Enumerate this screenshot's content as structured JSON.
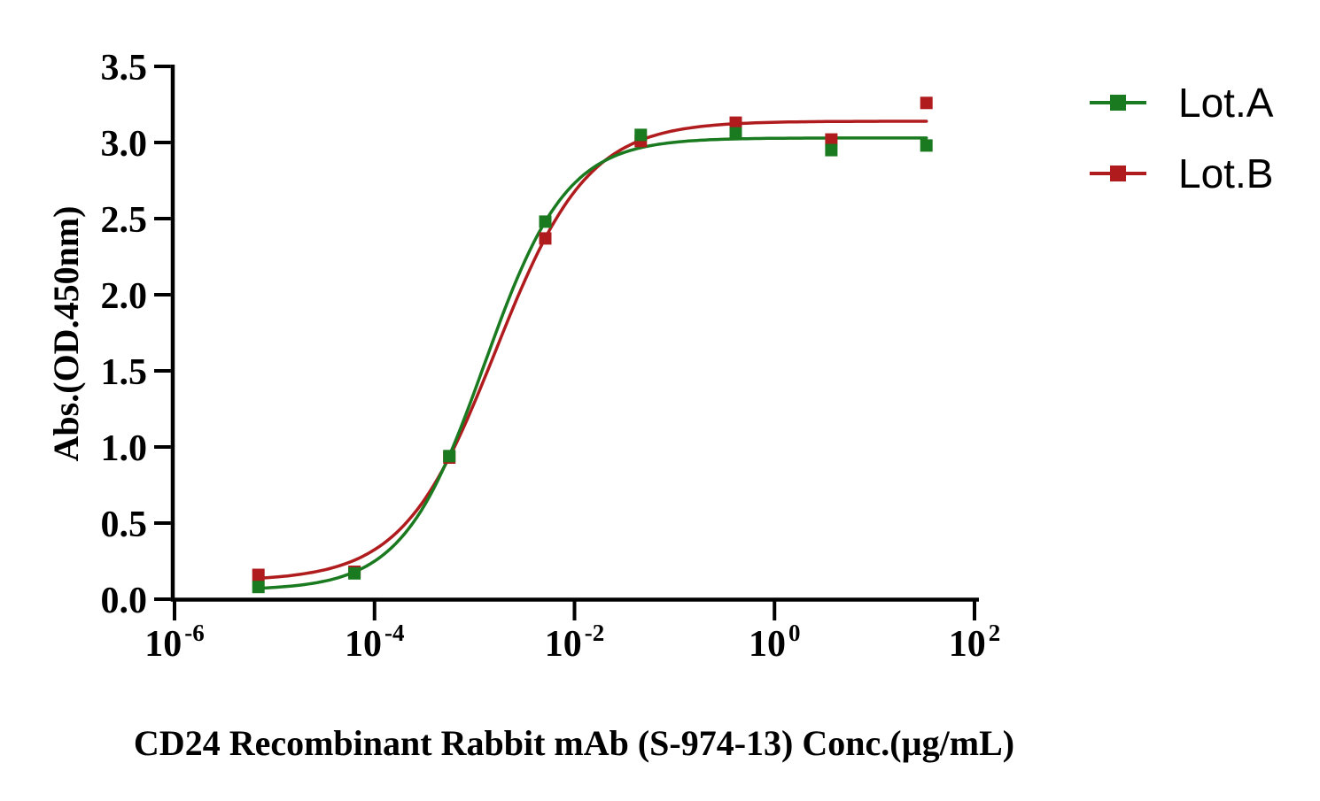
{
  "figure": {
    "background_color": "#ffffff",
    "axis_color": "#000000",
    "text_color": "#000000"
  },
  "chart_data": {
    "type": "line",
    "subtype": "sigmoidal-dose-response-scatter-with-fit",
    "title": "",
    "xlabel": "CD24 Recombinant Rabbit mAb (S-974-13) Conc.(µg/mL)",
    "ylabel": "Abs.(OD.450nm)",
    "x_scale": "log10",
    "xlim_log10": [
      -6,
      2
    ],
    "ylim": [
      0,
      3.5
    ],
    "grid": false,
    "y_ticks": [
      "0.0",
      "0.5",
      "1.0",
      "1.5",
      "2.0",
      "2.5",
      "3.0",
      "3.5"
    ],
    "x_ticks": [
      {
        "base": "10",
        "exponent": "-6"
      },
      {
        "base": "10",
        "exponent": "-4"
      },
      {
        "base": "10",
        "exponent": "-2"
      },
      {
        "base": "10",
        "exponent": "0"
      },
      {
        "base": "10",
        "exponent": "2"
      }
    ],
    "legend": {
      "position": "top-right",
      "items": [
        "Lot.A",
        "Lot.B"
      ]
    },
    "series": [
      {
        "name": "Lot.A",
        "color": "#1a7a1f",
        "marker": "square",
        "x_conc_ug_ml": [
          6.9e-06,
          6.3e-05,
          0.00056,
          0.0051,
          0.046,
          0.41,
          3.7,
          33
        ],
        "y_abs": [
          0.08,
          0.17,
          0.94,
          2.48,
          3.05,
          3.06,
          2.95,
          2.98
        ],
        "fit_4pl": {
          "bottom": 0.06,
          "top": 3.03,
          "log_ec50": -2.9,
          "hill": 1.06
        }
      },
      {
        "name": "Lot.B",
        "color": "#b01c1e",
        "marker": "square",
        "x_conc_ug_ml": [
          6.9e-06,
          6.3e-05,
          0.00056,
          0.0051,
          0.046,
          0.41,
          3.7,
          33
        ],
        "y_abs": [
          0.16,
          0.18,
          0.93,
          2.37,
          3.01,
          3.13,
          3.02,
          3.26
        ],
        "fit_4pl": {
          "bottom": 0.12,
          "top": 3.14,
          "log_ec50": -2.79,
          "hill": 0.94
        }
      }
    ]
  }
}
